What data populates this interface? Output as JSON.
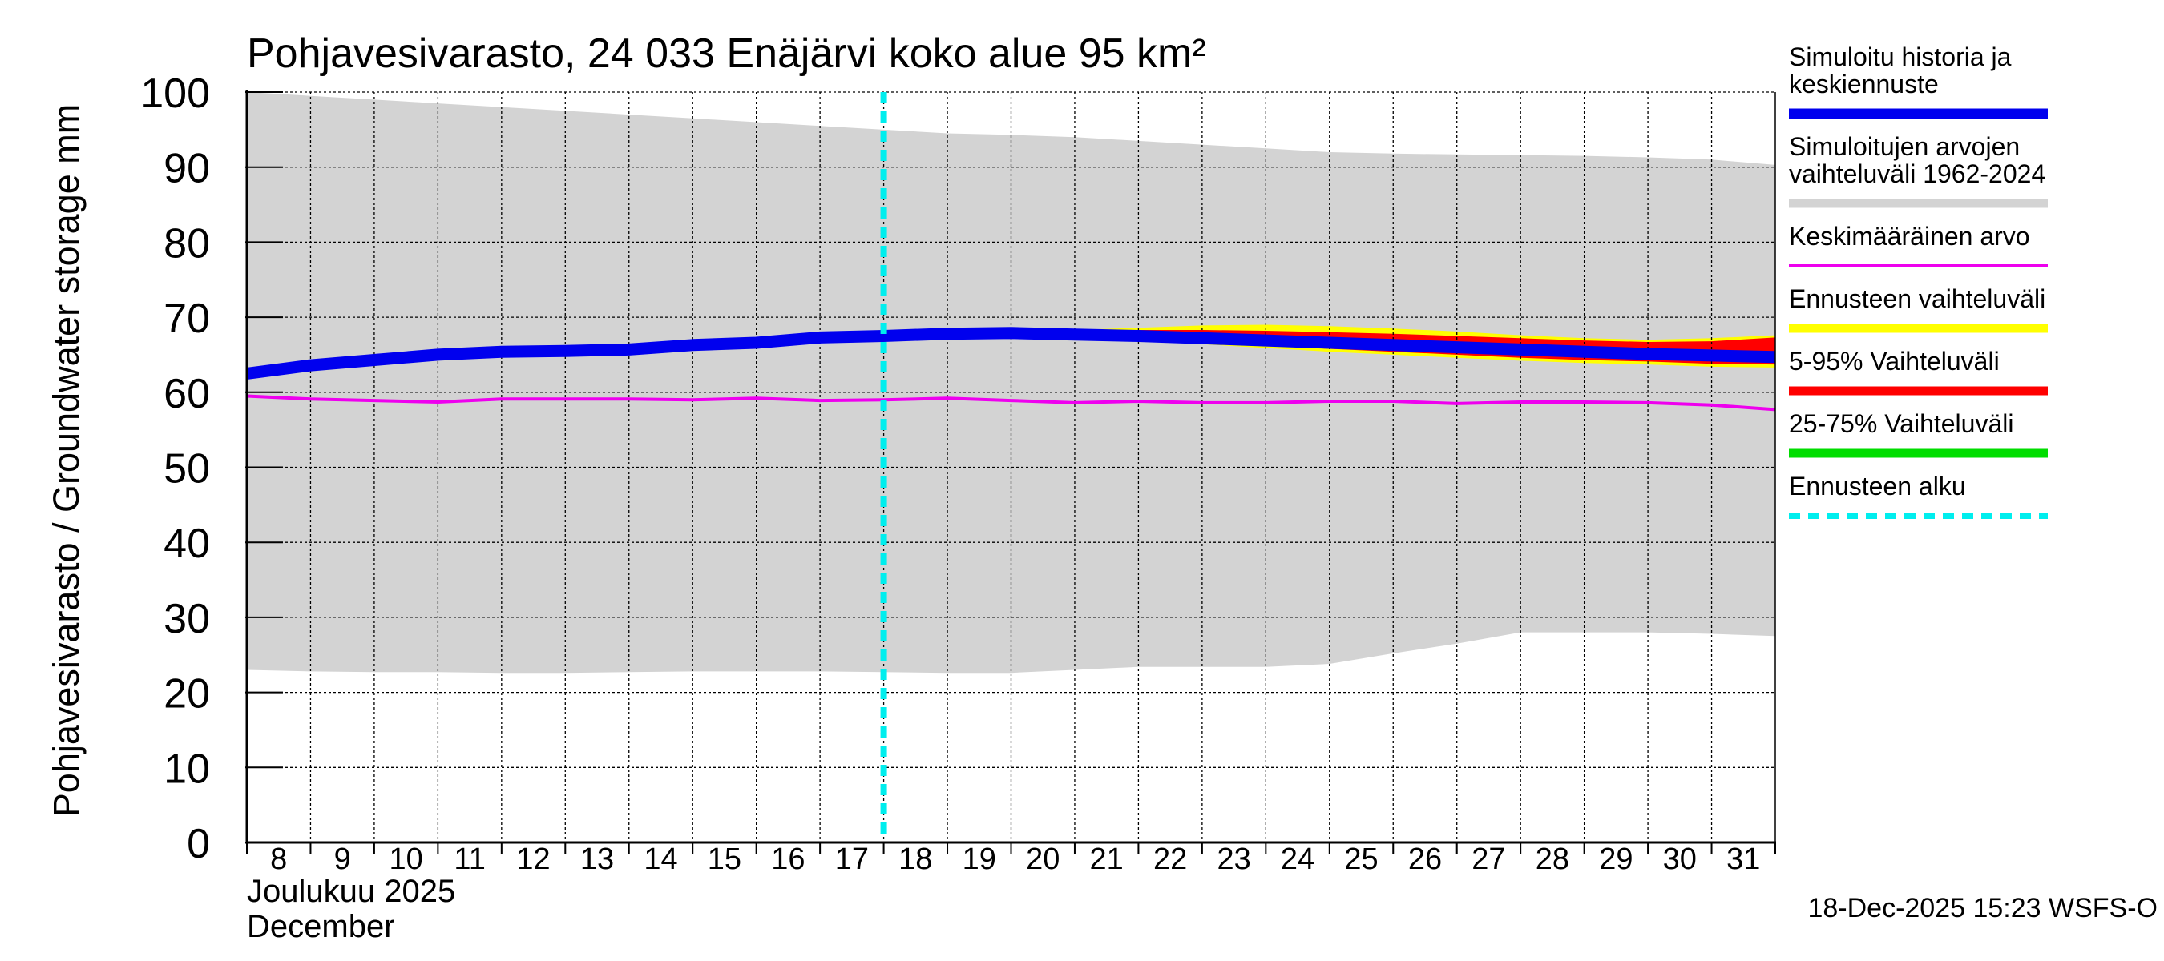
{
  "chart_data": {
    "type": "area",
    "title": "Pohjavesivarasto, 24 033 Enäjärvi koko alue 95 km²",
    "ylabel": "Pohjavesivarasto / Groundwater storage   mm",
    "xlabel_line1": "Joulukuu  2025",
    "xlabel_line2": "December",
    "footer": "18-Dec-2025 15:23 WSFS-O",
    "ylim": [
      0,
      100
    ],
    "yticks": [
      0,
      10,
      20,
      30,
      40,
      50,
      60,
      70,
      80,
      90,
      100
    ],
    "ytick_labels": [
      "0",
      "10",
      "20",
      "30",
      "40",
      "50",
      "60",
      "70",
      "80",
      "90",
      "100"
    ],
    "xlim": [
      8,
      32
    ],
    "x_tick_labels": [
      "8",
      "9",
      "10",
      "11",
      "12",
      "13",
      "14",
      "15",
      "16",
      "17",
      "18",
      "19",
      "20",
      "21",
      "22",
      "23",
      "24",
      "25",
      "26",
      "27",
      "28",
      "29",
      "30",
      "31"
    ],
    "forecast_start_x": 18,
    "colors": {
      "history_band": "#d3d3d3",
      "simulated": "#0000ee",
      "mean": "#ee00ee",
      "forecast_range": "#ffff00",
      "p5_95": "#ff0000",
      "p25_75": "#00dd00",
      "forecast_start": "#00eeee",
      "grid": "#000000"
    },
    "history_range": {
      "x": [
        8,
        9,
        10,
        11,
        12,
        13,
        14,
        15,
        16,
        17,
        18,
        19,
        20,
        21,
        22,
        23,
        24,
        25,
        26,
        27,
        28,
        29,
        30,
        31,
        32
      ],
      "upper": [
        100,
        99.5,
        99.0,
        98.5,
        98.0,
        97.5,
        97.0,
        96.5,
        96.0,
        95.5,
        95.0,
        94.5,
        94.3,
        94.0,
        93.5,
        93.0,
        92.5,
        92.0,
        91.8,
        91.7,
        91.6,
        91.5,
        91.3,
        91.0,
        90.3
      ],
      "lower": [
        23.0,
        22.8,
        22.7,
        22.7,
        22.6,
        22.6,
        22.7,
        22.8,
        22.8,
        22.8,
        22.7,
        22.6,
        22.6,
        23.0,
        23.4,
        23.4,
        23.4,
        23.8,
        25.2,
        26.5,
        28.0,
        28.0,
        28.0,
        27.8,
        27.5
      ]
    },
    "forecast_range": {
      "x": [
        19,
        20,
        21,
        22,
        23,
        24,
        25,
        26,
        27,
        28,
        29,
        30,
        31,
        32
      ],
      "upper": [
        67.8,
        67.9,
        68.3,
        68.6,
        68.9,
        69.0,
        68.8,
        68.5,
        68.1,
        67.6,
        67.2,
        67.0,
        67.2,
        67.6
      ],
      "lower": [
        67.5,
        67.4,
        67.1,
        66.8,
        66.4,
        65.9,
        65.4,
        65.0,
        64.6,
        64.2,
        63.9,
        63.7,
        63.4,
        63.3
      ]
    },
    "p5_95_range": {
      "x": [
        19,
        20,
        21,
        22,
        23,
        24,
        25,
        26,
        27,
        28,
        29,
        30,
        31,
        32
      ],
      "upper": [
        67.8,
        67.9,
        68.2,
        68.3,
        68.3,
        68.2,
        68.0,
        67.8,
        67.5,
        67.2,
        66.9,
        66.7,
        66.8,
        67.3
      ],
      "lower": [
        67.5,
        67.4,
        67.1,
        66.9,
        66.6,
        66.2,
        65.8,
        65.4,
        65.0,
        64.6,
        64.3,
        64.1,
        63.8,
        63.7
      ]
    },
    "simulated": {
      "name": "Simuloitu historia ja keskiennuste",
      "x": [
        8,
        9,
        10,
        11,
        12,
        13,
        14,
        15,
        16,
        17,
        18,
        19,
        20,
        21,
        22,
        23,
        24,
        25,
        26,
        27,
        28,
        29,
        30,
        31,
        32
      ],
      "values": [
        62.5,
        63.6,
        64.3,
        65.0,
        65.4,
        65.5,
        65.7,
        66.3,
        66.6,
        67.3,
        67.5,
        67.8,
        67.9,
        67.7,
        67.5,
        67.2,
        66.9,
        66.6,
        66.3,
        66.0,
        65.7,
        65.4,
        65.1,
        64.9,
        64.7
      ]
    },
    "mean": {
      "name": "Keskimääräinen arvo",
      "x": [
        8,
        9,
        10,
        11,
        12,
        13,
        14,
        15,
        16,
        17,
        18,
        19,
        20,
        21,
        22,
        23,
        24,
        25,
        26,
        27,
        28,
        29,
        30,
        31,
        32
      ],
      "values": [
        59.5,
        59.1,
        58.9,
        58.7,
        59.1,
        59.1,
        59.1,
        59.0,
        59.2,
        58.9,
        59.0,
        59.2,
        58.9,
        58.6,
        58.8,
        58.6,
        58.6,
        58.8,
        58.8,
        58.5,
        58.7,
        58.7,
        58.6,
        58.3,
        57.7
      ]
    },
    "legend": [
      {
        "lines": [
          "Simuloitu historia ja",
          "keskiennuste"
        ],
        "color_key": "simulated",
        "style": "thick"
      },
      {
        "lines": [
          "Simuloitujen arvojen",
          "vaihteluväli 1962-2024"
        ],
        "color_key": "history_band",
        "style": "medium"
      },
      {
        "lines": [
          "Keskimääräinen arvo"
        ],
        "color_key": "mean",
        "style": "thin"
      },
      {
        "lines": [
          "Ennusteen vaihteluväli"
        ],
        "color_key": "forecast_range",
        "style": "medium"
      },
      {
        "lines": [
          "5-95% Vaihteluväli"
        ],
        "color_key": "p5_95",
        "style": "medium"
      },
      {
        "lines": [
          "25-75% Vaihteluväli"
        ],
        "color_key": "p25_75",
        "style": "medium"
      },
      {
        "lines": [
          "Ennusteen alku"
        ],
        "color_key": "forecast_start",
        "style": "dashed"
      }
    ]
  }
}
